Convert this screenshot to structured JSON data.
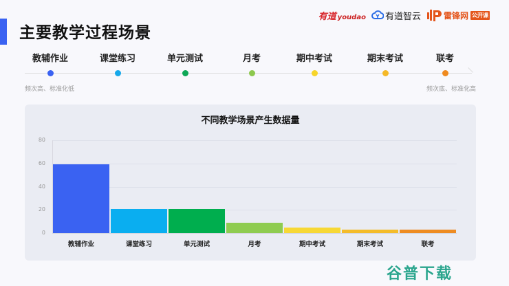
{
  "page": {
    "title": "主要教学过程场景",
    "accent_color": "#3a62f2"
  },
  "logos": {
    "youdao": "有道",
    "youdao_en": "youdao",
    "zhiyun": "有道智云",
    "leifeng": "雷锋网",
    "leifeng_badge": "公开课"
  },
  "timeline": {
    "stages": [
      {
        "label": "教辅作业",
        "color": "#3a62f2"
      },
      {
        "label": "课堂练习",
        "color": "#16a8ea"
      },
      {
        "label": "单元测试",
        "color": "#0ea857"
      },
      {
        "label": "月考",
        "color": "#8dc84e"
      },
      {
        "label": "期中考试",
        "color": "#f7d52a"
      },
      {
        "label": "期末考试",
        "color": "#f5b928"
      },
      {
        "label": "联考",
        "color": "#ef8a1f"
      }
    ],
    "left_note": "频次高、标准化低",
    "right_note": "频次底、标准化高"
  },
  "chart_data": {
    "type": "bar",
    "title": "不同教学场景产生数据量",
    "categories": [
      "教辅作业",
      "课堂练习",
      "单元测试",
      "月考",
      "期中考试",
      "期末考试",
      "联考"
    ],
    "values": [
      59,
      21,
      21,
      9,
      4.5,
      3,
      3
    ],
    "colors": [
      "#3a62f2",
      "#0aaef0",
      "#00ae4e",
      "#8fcc50",
      "#f7d835",
      "#f4bc2a",
      "#ee8c22"
    ],
    "xlabel": "",
    "ylabel": "",
    "ylim": [
      0,
      80
    ],
    "yticks": [
      0,
      20,
      40,
      60,
      80
    ],
    "grid": true,
    "legend": false
  },
  "watermark": "谷普下载"
}
